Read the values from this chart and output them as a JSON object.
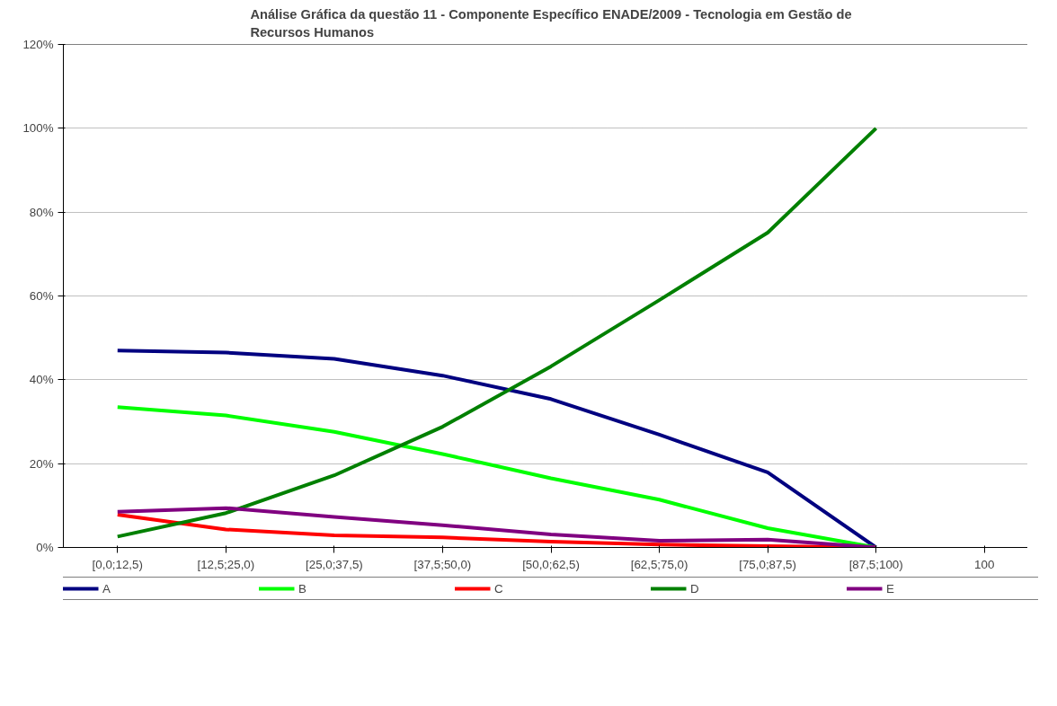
{
  "chart_data": {
    "type": "line",
    "title": "Análise Gráfica da questão 11 - Componente Específico ENADE/2009 - Tecnologia em Gestão de Recursos Humanos",
    "categories": [
      "[0,0;12,5)",
      "[12,5;25,0)",
      "[25,0;37,5)",
      "[37,5;50,0)",
      "[50,0;62,5)",
      "[62,5;75,0)",
      "[75,0;87,5)",
      "[87,5;100)",
      "100"
    ],
    "series": [
      {
        "name": "A",
        "color": "#000080",
        "values": [
          47.0,
          46.5,
          45.0,
          41.0,
          35.4,
          26.9,
          17.9,
          0,
          null
        ]
      },
      {
        "name": "B",
        "color": "#00ff00",
        "values": [
          33.5,
          31.5,
          27.6,
          22.3,
          16.5,
          11.4,
          4.6,
          0,
          null
        ]
      },
      {
        "name": "C",
        "color": "#ff0000",
        "values": [
          7.8,
          4.3,
          2.9,
          2.4,
          1.4,
          0.7,
          0.3,
          0,
          null
        ]
      },
      {
        "name": "D",
        "color": "#008000",
        "values": [
          2.6,
          8.2,
          17.2,
          28.8,
          43.2,
          59.0,
          75.1,
          100,
          null
        ]
      },
      {
        "name": "E",
        "color": "#800080",
        "values": [
          8.5,
          9.4,
          7.3,
          5.3,
          3.1,
          1.6,
          1.9,
          0,
          null
        ]
      }
    ],
    "ylim": [
      0,
      120
    ],
    "yticks": [
      {
        "value": 0,
        "label": "0%"
      },
      {
        "value": 20,
        "label": "20%"
      },
      {
        "value": 40,
        "label": "40%"
      },
      {
        "value": 60,
        "label": "60%"
      },
      {
        "value": 80,
        "label": "80%"
      },
      {
        "value": 100,
        "label": "100%"
      },
      {
        "value": 120,
        "label": "120%"
      }
    ],
    "grid": "y",
    "legend": "bottom",
    "marker": "none",
    "line_style": "solid"
  }
}
